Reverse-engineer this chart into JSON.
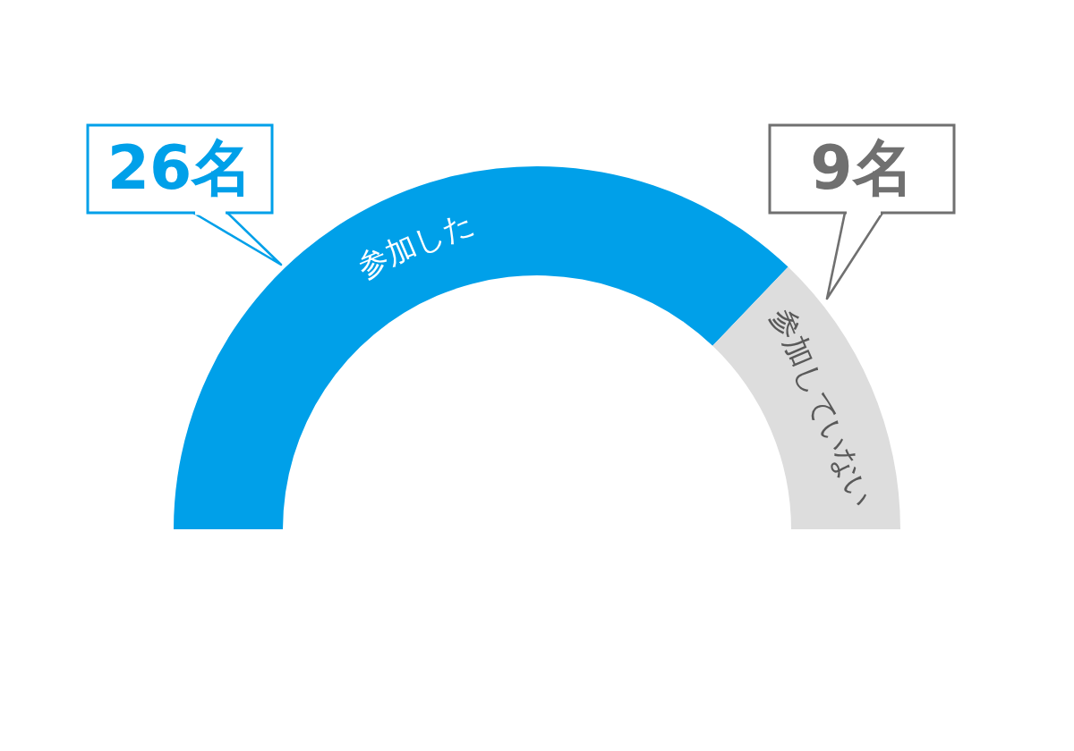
{
  "chart_data": {
    "type": "donut",
    "categories": [
      "参加した",
      "参加していない"
    ],
    "values": [
      26,
      9
    ],
    "colors": [
      "#00a0e9",
      "#dddddd"
    ],
    "value_labels": [
      "26名",
      "9名"
    ]
  }
}
